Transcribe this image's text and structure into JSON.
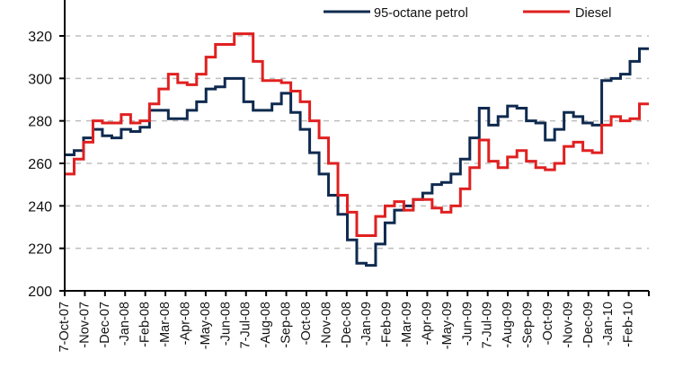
{
  "chart_data": {
    "type": "line",
    "title": "",
    "xlabel": "",
    "ylabel": "",
    "ylim": [
      200,
      340
    ],
    "yticks": [
      200,
      220,
      240,
      260,
      280,
      300,
      320
    ],
    "grid": {
      "y": true,
      "style": "dashed",
      "color": "#bdbdbd"
    },
    "legend_position": "top-right",
    "categories": [
      "7-Oct-07",
      "7-Nov-07",
      "7-Dec-07",
      "7-Jan-08",
      "7-Feb-08",
      "7-Mar-08",
      "7-Apr-08",
      "7-May-08",
      "7-Jun-08",
      "7-Jul-08",
      "7-Aug-08",
      "7-Sep-08",
      "7-Oct-08",
      "7-Nov-08",
      "7-Dec-08",
      "7-Jan-09",
      "7-Feb-09",
      "7-Mar-09",
      "7-Apr-09",
      "7-May-09",
      "7-Jun-09",
      "7-Jul-09",
      "7-Aug-09",
      "7-Sep-09",
      "7-Oct-09",
      "7-Nov-09",
      "7-Dec-09",
      "7-Jan-10",
      "7-Feb-10"
    ],
    "category_labels_visible": [
      "7-Oct-07",
      "-Nov-07",
      "-Dec-07",
      "-Jan-08",
      "-Feb-08",
      "-Mar-08",
      "-Apr-08",
      "-May-08",
      "-Jun-08",
      "7-Jul-08",
      "-Aug-08",
      "-Sep-08",
      "-Oct-08",
      "-Nov-08",
      "-Dec-08",
      "-Jan-09",
      "-Feb-09",
      "-Mar-09",
      "-Apr-09",
      "-May-09",
      "-Jun-09",
      "7-Jul-09",
      "-Aug-09",
      "-Sep-09",
      "-Oct-09",
      "-Nov-09",
      "-Dec-09",
      "-Jan-10",
      "-Feb-10"
    ],
    "x_step": "half-month",
    "series": [
      {
        "name": "95-octane petrol",
        "color": "#0f2a4f",
        "values": [
          264,
          266,
          272,
          276,
          273,
          272,
          276,
          275,
          277,
          285,
          285,
          281,
          281,
          285,
          289,
          295,
          296,
          300,
          300,
          289,
          285,
          285,
          288,
          293,
          284,
          276,
          265,
          255,
          245,
          236,
          224,
          213,
          212,
          222,
          232,
          238,
          240,
          243,
          246,
          250,
          251,
          255,
          262,
          272,
          286,
          278,
          282,
          287,
          286,
          280,
          279,
          271,
          276,
          284,
          282,
          279,
          278,
          299,
          300,
          302,
          308,
          314
        ]
      },
      {
        "name": "Diesel",
        "color": "#e02020",
        "values": [
          255,
          262,
          270,
          280,
          279,
          279,
          283,
          279,
          280,
          288,
          295,
          302,
          298,
          297,
          302,
          310,
          316,
          316,
          321,
          321,
          308,
          299,
          299,
          298,
          294,
          289,
          280,
          272,
          260,
          245,
          237,
          226,
          226,
          235,
          240,
          242,
          238,
          243,
          243,
          239,
          237,
          240,
          248,
          258,
          271,
          261,
          258,
          263,
          266,
          261,
          258,
          257,
          260,
          268,
          270,
          266,
          265,
          278,
          282,
          280,
          281,
          288
        ]
      }
    ]
  }
}
